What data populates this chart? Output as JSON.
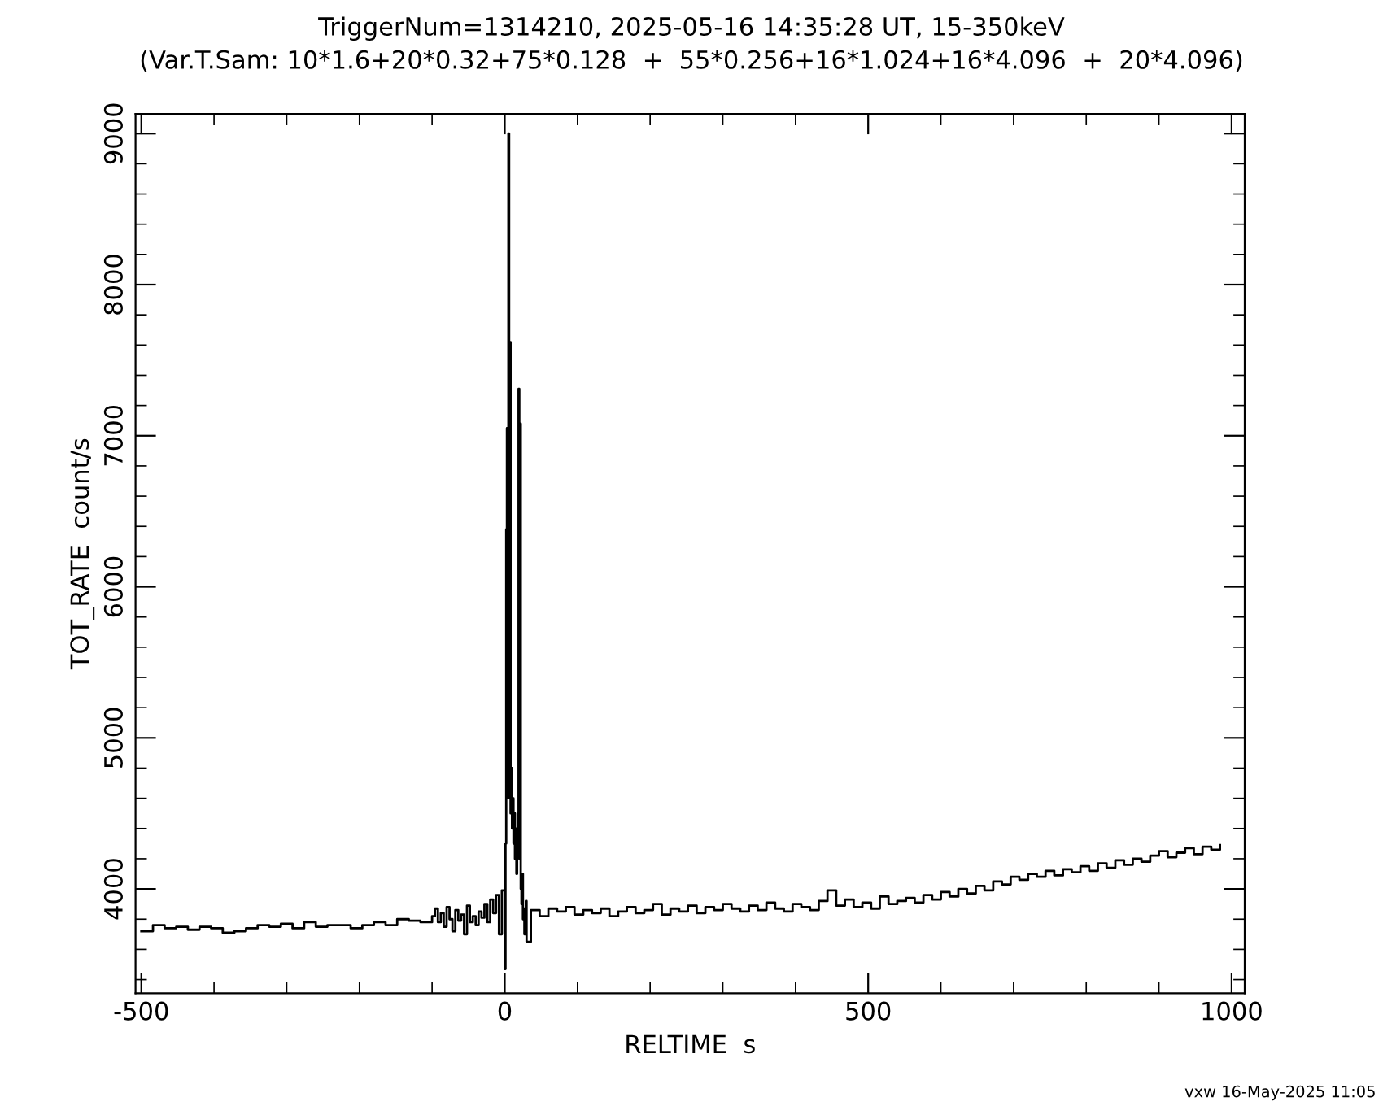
{
  "chart_data": {
    "type": "step",
    "title": "TriggerNum=1314210, 2025-05-16 14:35:28 UT, 15-350keV",
    "subtitle": "(Var.T.Sam: 10*1.6+20*0.32+75*0.128  +  55*0.256+16*1.024+16*4.096  +  20*4.096)",
    "xlabel": "RELTIME  s",
    "ylabel": "TOT_RATE  count/s",
    "annotations": [
      "vxw 16-May-2025 11:05"
    ],
    "series": [
      {
        "color": "#000000",
        "x": [
          -500,
          -484,
          -468,
          -452,
          -436,
          -420,
          -404,
          -388,
          -372,
          -356,
          -340,
          -324,
          -308,
          -292,
          -276,
          -260,
          -244,
          -228,
          -212,
          -196,
          -180,
          -164,
          -148,
          -132,
          -116,
          -100,
          -96,
          -92,
          -88,
          -84,
          -80,
          -76,
          -72,
          -68,
          -64,
          -60,
          -56,
          -52,
          -48,
          -44,
          -40,
          -36,
          -32,
          -28,
          -24,
          -20,
          -16,
          -12,
          -8,
          -4,
          0,
          1,
          2,
          3,
          4,
          5,
          6,
          7,
          8,
          9,
          10,
          11,
          12,
          13,
          14,
          15,
          16,
          17,
          18,
          19,
          20,
          21,
          22,
          23,
          24,
          25,
          26,
          27,
          28,
          29,
          30,
          36,
          48,
          60,
          72,
          84,
          96,
          108,
          120,
          132,
          144,
          156,
          168,
          180,
          192,
          204,
          216,
          228,
          240,
          252,
          264,
          276,
          288,
          300,
          312,
          324,
          336,
          348,
          360,
          372,
          384,
          396,
          408,
          420,
          432,
          444,
          456,
          468,
          480,
          492,
          504,
          516,
          528,
          540,
          552,
          564,
          576,
          588,
          600,
          612,
          624,
          636,
          648,
          660,
          672,
          684,
          696,
          708,
          720,
          732,
          744,
          756,
          768,
          780,
          792,
          804,
          816,
          828,
          840,
          852,
          864,
          876,
          888,
          900,
          912,
          924,
          936,
          948,
          960,
          972,
          984
        ],
        "values": [
          3720,
          3760,
          3740,
          3750,
          3730,
          3750,
          3740,
          3710,
          3720,
          3740,
          3760,
          3750,
          3770,
          3740,
          3780,
          3750,
          3760,
          3760,
          3740,
          3760,
          3780,
          3760,
          3800,
          3790,
          3780,
          3820,
          3870,
          3780,
          3840,
          3750,
          3880,
          3800,
          3720,
          3860,
          3790,
          3830,
          3700,
          3890,
          3780,
          3820,
          3760,
          3850,
          3810,
          3900,
          3780,
          3930,
          3840,
          3960,
          3700,
          3990,
          3470,
          4300,
          6380,
          7050,
          4600,
          9000,
          4700,
          7620,
          4500,
          4800,
          4400,
          4600,
          4300,
          4500,
          4200,
          4400,
          4100,
          4300,
          4500,
          7310,
          4200,
          7080,
          4000,
          3900,
          4100,
          3800,
          3870,
          3700,
          3850,
          3920,
          3650,
          3860,
          3820,
          3870,
          3850,
          3880,
          3830,
          3860,
          3840,
          3870,
          3820,
          3850,
          3880,
          3840,
          3860,
          3900,
          3830,
          3870,
          3850,
          3890,
          3840,
          3880,
          3860,
          3900,
          3870,
          3850,
          3890,
          3860,
          3910,
          3870,
          3850,
          3900,
          3880,
          3860,
          3920,
          3990,
          3890,
          3930,
          3880,
          3910,
          3870,
          3950,
          3900,
          3920,
          3940,
          3910,
          3960,
          3930,
          3980,
          3950,
          4000,
          3970,
          4020,
          3990,
          4050,
          4030,
          4080,
          4060,
          4100,
          4080,
          4120,
          4090,
          4130,
          4110,
          4150,
          4120,
          4170,
          4140,
          4190,
          4160,
          4200,
          4180,
          4220,
          4250,
          4210,
          4240,
          4270,
          4230,
          4280,
          4260,
          4290
        ]
      }
    ],
    "xlim": [
      -508,
      1018
    ],
    "ylim": [
      3310,
      9130
    ],
    "xticks": [
      -500,
      {
        "value": -400,
        "label": null
      },
      {
        "value": -300,
        "label": null
      },
      {
        "value": -200,
        "label": null
      },
      {
        "value": -100,
        "label": null
      },
      0,
      {
        "value": 100,
        "label": null
      },
      {
        "value": 200,
        "label": null
      },
      {
        "value": 300,
        "label": null
      },
      {
        "value": 400,
        "label": null
      },
      500,
      {
        "value": 600,
        "label": null
      },
      {
        "value": 700,
        "label": null
      },
      {
        "value": 800,
        "label": null
      },
      {
        "value": 900,
        "label": null
      },
      1000
    ],
    "yticks": [
      {
        "value": 3400,
        "label": null
      },
      {
        "value": 3600,
        "label": null
      },
      {
        "value": 3800,
        "label": null
      },
      4000,
      {
        "value": 4200,
        "label": null
      },
      {
        "value": 4400,
        "label": null
      },
      {
        "value": 4600,
        "label": null
      },
      {
        "value": 4800,
        "label": null
      },
      5000,
      {
        "value": 5200,
        "label": null
      },
      {
        "value": 5400,
        "label": null
      },
      {
        "value": 5600,
        "label": null
      },
      {
        "value": 5800,
        "label": null
      },
      6000,
      {
        "value": 6200,
        "label": null
      },
      {
        "value": 6400,
        "label": null
      },
      {
        "value": 6600,
        "label": null
      },
      {
        "value": 6800,
        "label": null
      },
      7000,
      {
        "value": 7200,
        "label": null
      },
      {
        "value": 7400,
        "label": null
      },
      {
        "value": 7600,
        "label": null
      },
      {
        "value": 7800,
        "label": null
      },
      8000,
      {
        "value": 8200,
        "label": null
      },
      {
        "value": 8400,
        "label": null
      },
      {
        "value": 8600,
        "label": null
      },
      {
        "value": 8800,
        "label": null
      },
      9000
    ]
  }
}
